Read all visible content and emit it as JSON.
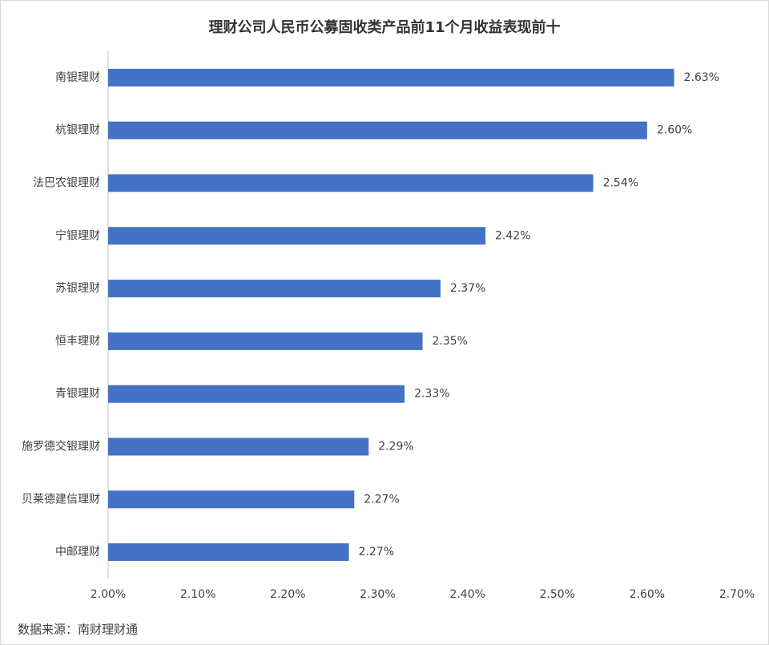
{
  "chart_data": {
    "type": "hbar",
    "title": "理财公司人民币公募固收类产品前11个月收益表现前十",
    "categories": [
      "南银理财",
      "杭银理财",
      "法巴农银理财",
      "宁银理财",
      "苏银理财",
      "恒丰理财",
      "青银理财",
      "施罗德交银理财",
      "贝莱德建信理财",
      "中邮理财"
    ],
    "values": [
      2.63,
      2.6,
      2.54,
      2.42,
      2.37,
      2.35,
      2.33,
      2.29,
      2.274,
      2.268
    ],
    "value_labels": [
      "2.63%",
      "2.60%",
      "2.54%",
      "2.42%",
      "2.37%",
      "2.35%",
      "2.33%",
      "2.29%",
      "2.27%",
      "2.27%"
    ],
    "color": "#4472c4",
    "xlim": [
      2.0,
      2.7
    ],
    "xticks": [
      {
        "value": 2.0,
        "label": "2.00%"
      },
      {
        "value": 2.1,
        "label": "2.10%"
      },
      {
        "value": 2.2,
        "label": "2.20%"
      },
      {
        "value": 2.3,
        "label": "2.30%"
      },
      {
        "value": 2.4,
        "label": "2.40%"
      },
      {
        "value": 2.5,
        "label": "2.50%"
      },
      {
        "value": 2.6,
        "label": "2.60%"
      },
      {
        "value": 2.7,
        "label": "2.70%"
      }
    ],
    "grid": false,
    "source": "数据来源：南财理财通"
  }
}
